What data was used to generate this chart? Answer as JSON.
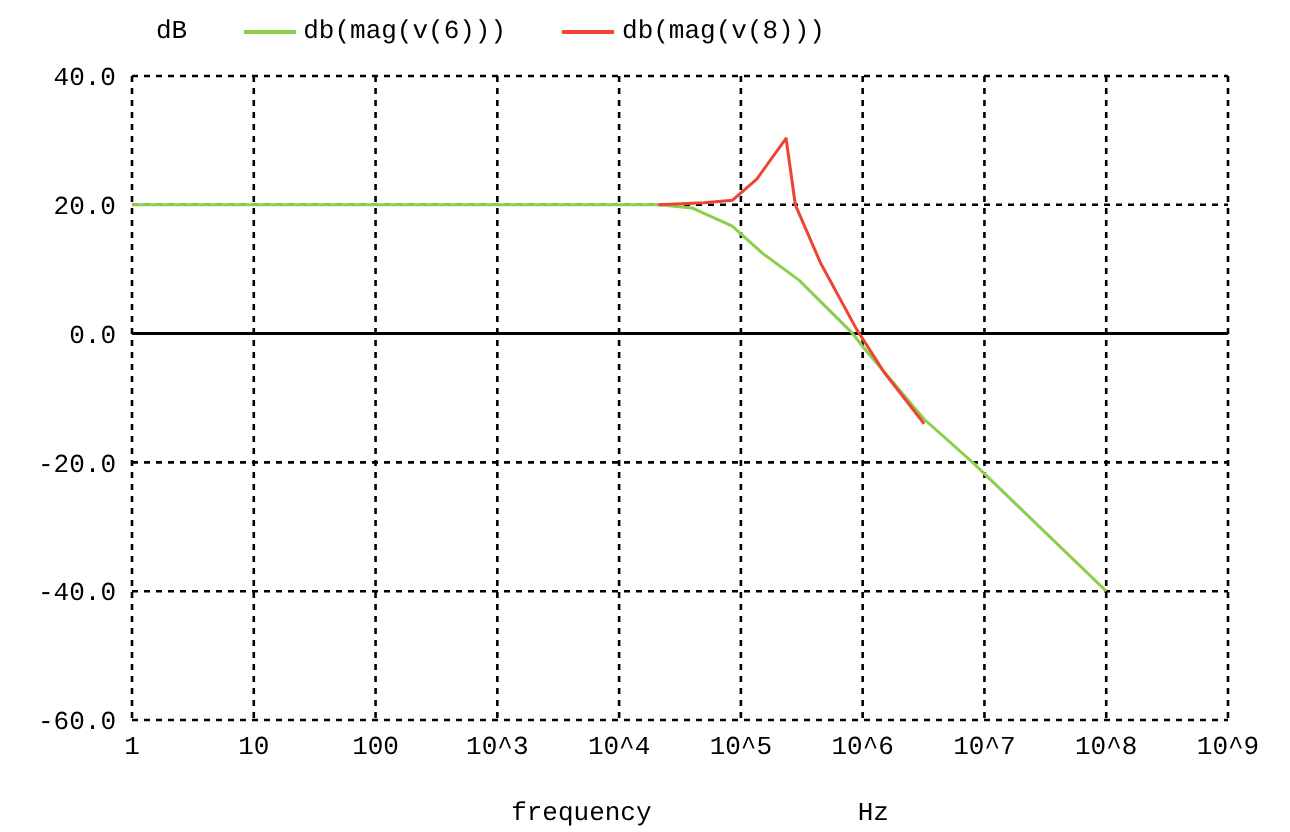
{
  "chart_data": {
    "type": "line",
    "ylabel": "dB",
    "xlabel": "frequency",
    "annotations": [
      "Hz"
    ],
    "series": [
      {
        "name": "db(mag(v(6)))",
        "color": "#8ccf4d",
        "x": [
          1,
          10,
          100,
          1000,
          10000,
          21000,
          40000,
          85000,
          150000,
          300000,
          830000,
          1000000,
          3200000,
          8000000,
          100000000
        ],
        "values": [
          20,
          20,
          20,
          20,
          20,
          20,
          19.5,
          16.7,
          12.5,
          8.3,
          0,
          -2,
          -13.3,
          -20,
          -40
        ]
      },
      {
        "name": "db(mag(v(8)))",
        "color": "#ee4433",
        "x": [
          21000,
          50000,
          85000,
          135000,
          235000,
          280000,
          450000,
          890000,
          1500000,
          3200000
        ],
        "values": [
          20,
          20.3,
          20.7,
          24,
          30.3,
          20,
          11,
          0.7,
          -6,
          -14
        ]
      }
    ],
    "xlim": [
      1,
      1000000000
    ],
    "xticks": [
      1,
      10,
      100,
      {
        "value": 1000,
        "label": "10^3"
      },
      {
        "value": 10000,
        "label": "10^4"
      },
      {
        "value": 100000,
        "label": "10^5"
      },
      {
        "value": 1000000,
        "label": "10^6"
      },
      {
        "value": 10000000,
        "label": "10^7"
      },
      {
        "value": 100000000,
        "label": "10^8"
      },
      {
        "value": 1000000000,
        "label": "10^9"
      }
    ],
    "ylim": [
      -60,
      40
    ],
    "yticks": [
      {
        "value": -60,
        "label": "-60.0"
      },
      {
        "value": -40,
        "label": "-40.0"
      },
      {
        "value": -20,
        "label": "-20.0"
      },
      {
        "value": 0,
        "label": "0.0"
      },
      {
        "value": 20,
        "label": "20.0"
      },
      {
        "value": 40,
        "label": "40.0"
      }
    ],
    "ref_lines": [
      {
        "axis": "y",
        "value": 0,
        "color": "#000000",
        "line_style": "solid"
      }
    ],
    "log": "x",
    "grid": true,
    "legend": "top",
    "marker": "none",
    "line_style": "solid"
  }
}
